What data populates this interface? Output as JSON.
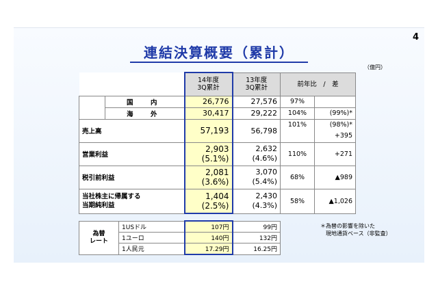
{
  "page_number": "4",
  "title": "連結決算概要（累計）",
  "unit": "（億円）",
  "header": {
    "current": [
      "14年度",
      "3Q累計"
    ],
    "previous": [
      "13年度",
      "3Q累計"
    ],
    "compare": "前年比　/　差"
  },
  "rows": {
    "domestic": {
      "label": "国　内",
      "current": "26,776",
      "previous": "27,576",
      "ratio": "97%",
      "diff": ""
    },
    "overseas": {
      "label": "海　外",
      "current": "30,417",
      "previous": "29,222",
      "ratio": "104%",
      "diff": "(99%)*"
    },
    "sales": {
      "label": "売上高",
      "current": "57,193",
      "previous": "56,798",
      "ratio": "101%",
      "diff": "(98%)*",
      "diff2": "+395"
    },
    "operating": {
      "label": "営業利益",
      "current": "2,903",
      "current_pct": "(5.1%)",
      "previous": "2,632",
      "previous_pct": "(4.6%)",
      "ratio": "110%",
      "diff": "+271"
    },
    "pretax": {
      "label": "税引前利益",
      "current": "2,081",
      "current_pct": "(3.6%)",
      "previous": "3,070",
      "previous_pct": "(5.4%)",
      "ratio": "68%",
      "diff": "▲989"
    },
    "net": {
      "label1": "当社株主に帰属する",
      "label2": "当期純利益",
      "current": "1,404",
      "current_pct": "(2.5%)",
      "previous": "2,430",
      "previous_pct": "(4.3%)",
      "ratio": "58%",
      "diff": "▲1,026"
    }
  },
  "fx": {
    "label": [
      "為替",
      "レート"
    ],
    "rows": [
      {
        "currency": "1USドル",
        "current": "107円",
        "previous": "99円"
      },
      {
        "currency": "1ユーロ",
        "current": "140円",
        "previous": "132円"
      },
      {
        "currency": "1人民元",
        "current": "17.29円",
        "previous": "16.25円"
      }
    ]
  },
  "note": [
    "＊為替の影響を除いた",
    "　現地通貨ベース（非監査）"
  ]
}
